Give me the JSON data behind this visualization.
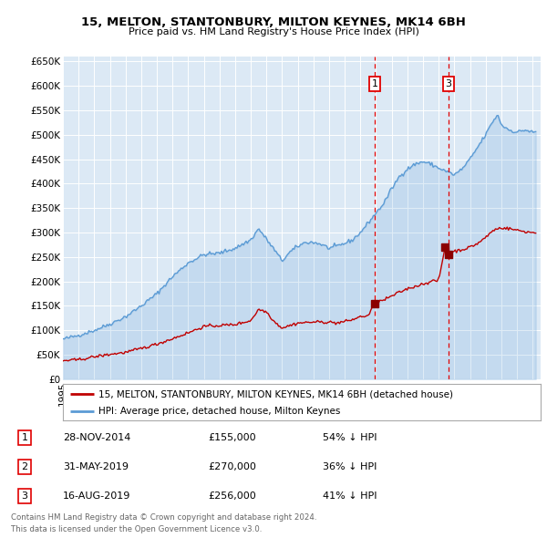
{
  "title": "15, MELTON, STANTONBURY, MILTON KEYNES, MK14 6BH",
  "subtitle": "Price paid vs. HM Land Registry's House Price Index (HPI)",
  "background_color": "#dce9f5",
  "plot_bg_color": "#dce9f5",
  "ylim": [
    0,
    660000
  ],
  "yticks": [
    0,
    50000,
    100000,
    150000,
    200000,
    250000,
    300000,
    350000,
    400000,
    450000,
    500000,
    550000,
    600000,
    650000
  ],
  "ytick_labels": [
    "£0",
    "£50K",
    "£100K",
    "£150K",
    "£200K",
    "£250K",
    "£300K",
    "£350K",
    "£400K",
    "£450K",
    "£500K",
    "£550K",
    "£600K",
    "£650K"
  ],
  "hpi_color": "#5b9bd5",
  "price_color": "#c00000",
  "marker_color": "#8b0000",
  "vline_color": "#e00000",
  "transaction1_date": 2014.91,
  "transaction1_price": 155000,
  "transaction2_date": 2019.41,
  "transaction2_price": 270000,
  "transaction3_date": 2019.62,
  "transaction3_price": 256000,
  "table_rows": [
    {
      "num": "1",
      "date": "28-NOV-2014",
      "price": "£155,000",
      "pct": "54% ↓ HPI"
    },
    {
      "num": "2",
      "date": "31-MAY-2019",
      "price": "£270,000",
      "pct": "36% ↓ HPI"
    },
    {
      "num": "3",
      "date": "16-AUG-2019",
      "price": "£256,000",
      "pct": "41% ↓ HPI"
    }
  ],
  "footer_line1": "Contains HM Land Registry data © Crown copyright and database right 2024.",
  "footer_line2": "This data is licensed under the Open Government Licence v3.0.",
  "legend_line1": "15, MELTON, STANTONBURY, MILTON KEYNES, MK14 6BH (detached house)",
  "legend_line2": "HPI: Average price, detached house, Milton Keynes"
}
